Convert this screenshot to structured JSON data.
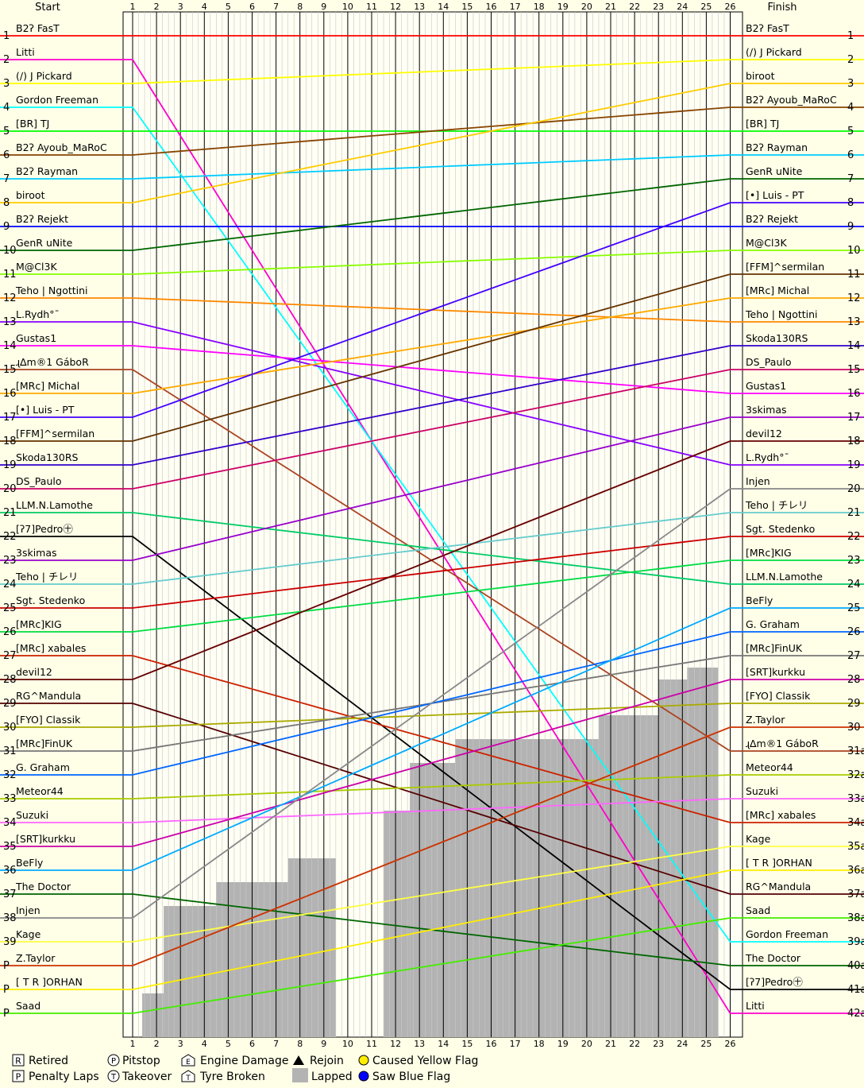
{
  "chart_data": {
    "type": "line",
    "header": {
      "start": "Start",
      "finish": "Finish"
    },
    "laps": [
      1,
      2,
      3,
      4,
      5,
      6,
      7,
      8,
      9,
      10,
      11,
      12,
      13,
      14,
      15,
      16,
      17,
      18,
      19,
      20,
      21,
      22,
      23,
      24,
      25,
      26
    ],
    "start_positions": [
      "1",
      "2",
      "3",
      "4",
      "5",
      "6",
      "7",
      "8",
      "9",
      "10",
      "11",
      "12",
      "13",
      "14",
      "15",
      "16",
      "17",
      "18",
      "19",
      "20",
      "21",
      "22",
      "23",
      "24",
      "25",
      "26",
      "27",
      "28",
      "29",
      "30",
      "31",
      "32",
      "33",
      "34",
      "35",
      "36",
      "37",
      "38",
      "39",
      "P",
      "P",
      "P"
    ],
    "finish_positions": [
      "1",
      "2",
      "3",
      "4",
      "5",
      "6",
      "7",
      "8",
      "9",
      "10",
      "11",
      "12",
      "13",
      "14",
      "15",
      "16",
      "17",
      "18",
      "19",
      "20",
      "21",
      "22",
      "23",
      "24",
      "25",
      "26",
      "27",
      "28",
      "29",
      "30",
      "31a",
      "32a",
      "33a",
      "34a",
      "35a",
      "36a",
      "37a",
      "38a",
      "39a",
      "40a",
      "41a",
      "42a"
    ],
    "start_grid": [
      "B2ʔ FasT",
      "Litti",
      "(/) J Pickard",
      "Gordon Freeman",
      "[BR] TJ",
      "B2ʔ Ayoub_MaRoC",
      "B2ʔ Rayman",
      "biroot",
      "B2ʔ Rejekt",
      "GenR uNite",
      "M@Cl3K",
      "Teho | Ngottini",
      "L.Rydh°¯",
      "Gustas1",
      "ɻ∆m®1 GáboR",
      "[MRc] Michal",
      "[•] Luis - PT",
      "[FFM]^sermilan",
      "Skoda130RS",
      "DS_Paulo",
      "LLM.N.Lamothe",
      "[ʔ7]Pedro㊉",
      "3skimas",
      "Teho | チレリ",
      "Sgt. Stedenko",
      "[MRc]KIG",
      "[MRc] xabales",
      "devil12",
      "RG^Mandula",
      "[FYO] Classik",
      "[MRc]FinUK",
      "G. Graham",
      "Meteor44",
      "Suzuki",
      "[SRT]kurkku",
      "BeFly",
      "The Doctor",
      "Injen",
      "Kage",
      "Z.Taylor",
      "[ T R ]ORHAN",
      "Saad"
    ],
    "finish_order": [
      "B2ʔ FasT",
      "(/) J Pickard",
      "biroot",
      "B2ʔ Ayoub_MaRoC",
      "[BR] TJ",
      "B2ʔ Rayman",
      "GenR uNite",
      "[•] Luis - PT",
      "B2ʔ Rejekt",
      "M@Cl3K",
      "[FFM]^sermilan",
      "[MRc] Michal",
      "Teho | Ngottini",
      "Skoda130RS",
      "DS_Paulo",
      "Gustas1",
      "3skimas",
      "devil12",
      "L.Rydh°¯",
      "Injen",
      "Teho | チレリ",
      "Sgt. Stedenko",
      "[MRc]KIG",
      "LLM.N.Lamothe",
      "BeFly",
      "G. Graham",
      "[MRc]FinUK",
      "[SRT]kurkku",
      "[FYO] Classik",
      "Z.Taylor",
      "ɻ∆m®1 GáboR",
      "Meteor44",
      "Suzuki",
      "[MRc] xabales",
      "Kage",
      "[ T R ]ORHAN",
      "RG^Mandula",
      "Saad",
      "Gordon Freeman",
      "The Doctor",
      "[ʔ7]Pedro㊉",
      "Litti"
    ],
    "colors": [
      "#ff0000",
      "#ff00cc",
      "#ffff00",
      "#00ffff",
      "#00ff00",
      "#884400",
      "#00ccff",
      "#ffcc00",
      "#0000ff",
      "#006600",
      "#88ff00",
      "#ff8800",
      "#8800ff",
      "#ff00ff",
      "#aa4422",
      "#ffaa00",
      "#4400ff",
      "#663300",
      "#3300cc",
      "#cc0066",
      "#00cc66",
      "#000000",
      "#9900cc",
      "#66cccc",
      "#cc0000",
      "#00dd44",
      "#cc2200",
      "#660000",
      "#550000",
      "#aaaa00",
      "#777777",
      "#0066ff",
      "#aacc00",
      "#ff66ff",
      "#cc00aa",
      "#00aaff",
      "#006600",
      "#888888",
      "#ffff44",
      "#cc3300",
      "#ffee00",
      "#44ee00"
    ],
    "legend": {
      "retired": "Retired",
      "penalty": "Penalty Laps",
      "pitstop": "Pitstop",
      "takeover": "Takeover",
      "engine": "Engine Damage",
      "tyre": "Tyre Broken",
      "rejoin": "Rejoin",
      "lapped": "Lapped",
      "yellow": "Caused Yellow Flag",
      "blue": "Saw Blue Flag"
    }
  }
}
